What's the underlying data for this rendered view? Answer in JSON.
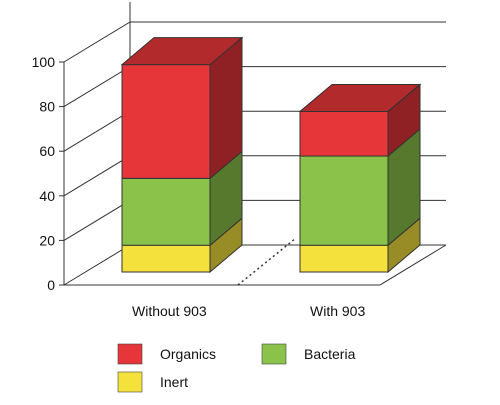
{
  "chart_data": {
    "type": "bar",
    "stacked": true,
    "three_d": true,
    "categories": [
      "Without 903",
      "With 903"
    ],
    "series": [
      {
        "name": "Inert",
        "values": [
          12,
          12
        ],
        "color": "#f4e13c"
      },
      {
        "name": "Bacteria",
        "values": [
          30,
          40
        ],
        "color": "#8bc34a"
      },
      {
        "name": "Organics",
        "values": [
          51,
          20
        ],
        "color": "#e6363a"
      }
    ],
    "ylim": [
      0,
      100
    ],
    "yticks": [
      0,
      20,
      40,
      60,
      80,
      100
    ],
    "ytick_labels": [
      "0",
      "20",
      "40",
      "60",
      "80",
      "100"
    ],
    "grid": true,
    "legend_position": "bottom",
    "legend": [
      "Organics",
      "Bacteria",
      "Inert"
    ],
    "title": "",
    "xlabel": "",
    "ylabel": ""
  }
}
